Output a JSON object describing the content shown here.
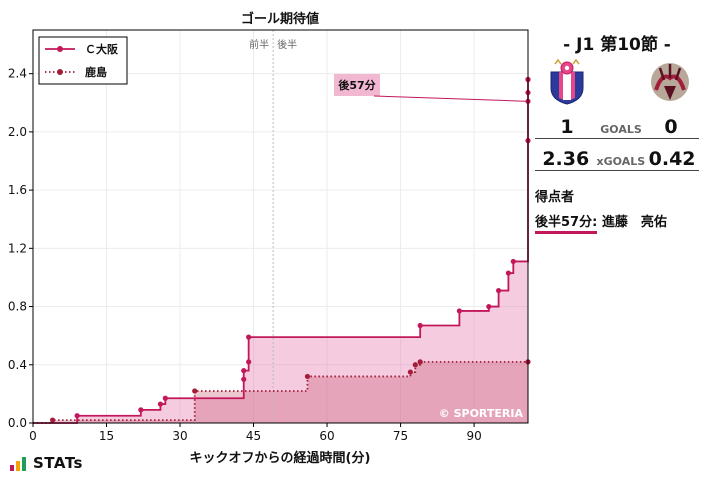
{
  "chart_data": {
    "type": "line",
    "title": "ゴール期待値",
    "xlabel": "キックオフからの経過時間(分)",
    "ylabel": "",
    "xlim": [
      0,
      101
    ],
    "ylim": [
      0,
      2.7
    ],
    "xticks": [
      0,
      15,
      30,
      45,
      60,
      75,
      90
    ],
    "yticks": [
      0,
      0.4,
      0.8,
      1.2,
      1.6,
      2.0,
      2.4
    ],
    "xtick_labels": [
      "0",
      "15",
      "30",
      "45",
      "60",
      "75",
      "90"
    ],
    "ytick_labels": [
      "0.0",
      "0.4",
      "0.8",
      "1.2",
      "1.6",
      "2.0",
      "2.4"
    ],
    "halftime_x": 49,
    "halftime_labels": [
      "前半",
      "後半"
    ],
    "grid": true,
    "legend_position": "top-left",
    "watermark": "© SPORTERIA",
    "annotation": {
      "text": "後57分",
      "x": 102,
      "y": 2.21
    },
    "series": [
      {
        "name": "Ｃ大阪",
        "color": "#c2185b",
        "line_style": "solid",
        "points": [
          [
            9,
            0.05
          ],
          [
            22,
            0.09
          ],
          [
            26,
            0.13
          ],
          [
            27,
            0.17
          ],
          [
            43,
            0.3
          ],
          [
            43,
            0.36
          ],
          [
            44,
            0.42
          ],
          [
            44,
            0.59
          ],
          [
            79,
            0.67
          ],
          [
            87,
            0.77
          ],
          [
            93,
            0.8
          ],
          [
            95,
            0.91
          ],
          [
            97,
            1.03
          ],
          [
            98,
            1.11
          ],
          [
            102,
            1.94
          ],
          [
            102,
            2.21
          ],
          [
            106,
            2.27
          ],
          [
            106,
            2.36
          ],
          [
            151,
            2.36
          ]
        ]
      },
      {
        "name": "鹿島",
        "color": "#a31d3a",
        "line_style": "dotted",
        "points": [
          [
            4,
            0.02
          ],
          [
            33,
            0.22
          ],
          [
            56,
            0.32
          ],
          [
            77,
            0.35
          ],
          [
            78,
            0.4
          ],
          [
            79,
            0.42
          ],
          [
            151,
            0.42
          ]
        ]
      }
    ]
  },
  "panel": {
    "match_title": "- J1 第10節 -",
    "home_score": "1",
    "away_score": "0",
    "goals_label": "GOALS",
    "home_xg": "2.36",
    "away_xg": "0.42",
    "xg_label": "xGOALS",
    "scorers_title": "得点者",
    "scorer_time": "後半57分:",
    "scorer_name": " 進藤　亮佑"
  },
  "brand": {
    "name": "STATs"
  }
}
